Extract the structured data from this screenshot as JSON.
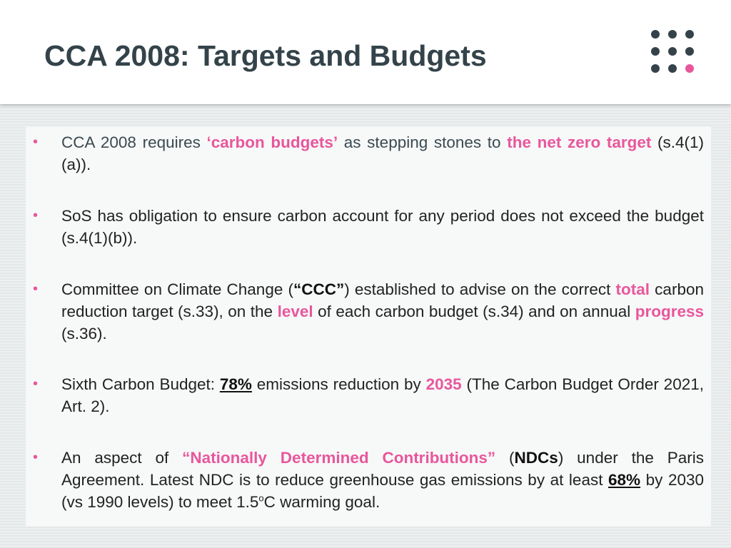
{
  "slide": {
    "title": "CCA 2008: Targets and Budgets",
    "colors": {
      "accent": "#e8579c",
      "title": "#34434a",
      "text": "#222222"
    },
    "logo_icon": "dot-grid-icon"
  },
  "bullets": [
    {
      "parts": [
        "CCA 2008 requires ",
        "‘carbon budgets’",
        " as stepping stones to ",
        "the net zero target",
        " (s.4(1)(a))."
      ]
    },
    {
      "parts": [
        "SoS has obligation to ensure carbon account for any period does not exceed the budget (s.4(1)(b))."
      ]
    },
    {
      "parts": [
        "Committee on Climate Change (",
        "“CCC”",
        ") established to advise on the correct ",
        "total",
        " carbon reduction target (s.33), on the ",
        "level",
        " of each carbon budget (s.34) and on annual ",
        "progress",
        " (s.36)."
      ]
    },
    {
      "parts": [
        "Sixth Carbon Budget: ",
        "78%",
        " emissions reduction by ",
        "2035",
        " (The Carbon Budget Order 2021, Art. 2)."
      ]
    },
    {
      "parts": [
        "An aspect of ",
        "“Nationally Determined Contributions”",
        " (",
        "NDCs",
        ") under the Paris Agreement. Latest NDC is to reduce greenhouse gas emissions by at least ",
        "68%",
        " by 2030 (vs 1990 levels) to meet 1.5",
        "o",
        "C warming goal."
      ]
    }
  ],
  "bullet_marker": "•"
}
